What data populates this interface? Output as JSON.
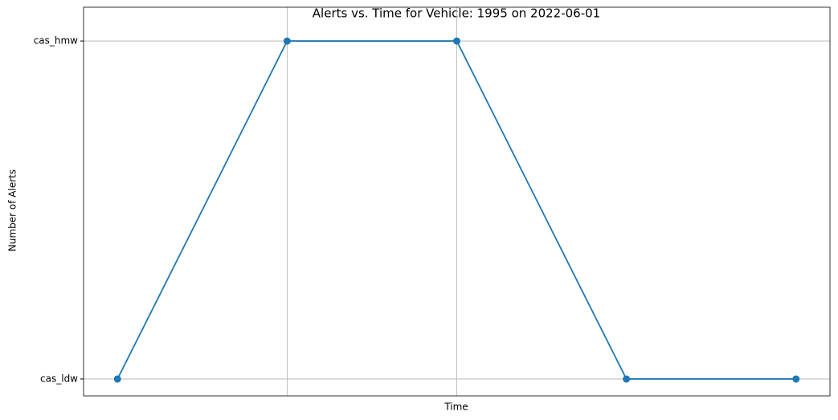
{
  "chart_data": {
    "type": "line",
    "title": "Alerts vs. Time for Vehicle: 1995 on 2022-06-01",
    "x_label": "Time",
    "y_label": "Number of Alerts",
    "categories": [
      null,
      null,
      null,
      null,
      null
    ],
    "y_categories": [
      "cas_ldw",
      "cas_hmw"
    ],
    "values": [
      "cas_ldw",
      "cas_hmw",
      "cas_hmw",
      "cas_ldw",
      "cas_ldw"
    ],
    "color": "#1f77b4",
    "xlim": [
      -0.2,
      4.2
    ],
    "xticks": [
      1,
      2
    ],
    "ylim": [
      -0.05,
      1.1
    ],
    "grid": true
  }
}
